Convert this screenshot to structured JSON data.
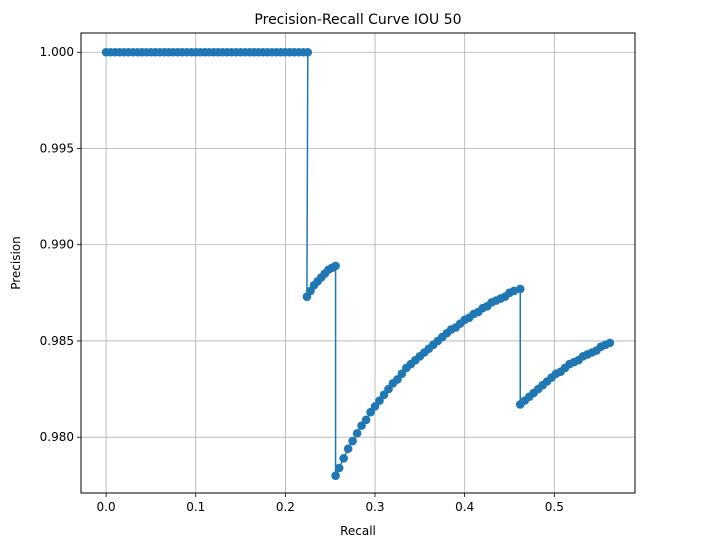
{
  "chart_data": {
    "type": "line",
    "title": "Precision-Recall Curve IOU 50",
    "xlabel": "Recall",
    "ylabel": "Precision",
    "xlim": [
      -0.028,
      0.59
    ],
    "ylim": [
      0.9771,
      1.001
    ],
    "xticks": [
      0.0,
      0.1,
      0.2,
      0.3,
      0.4,
      0.5
    ],
    "xtick_labels": [
      "0.0",
      "0.1",
      "0.2",
      "0.3",
      "0.4",
      "0.5"
    ],
    "yticks": [
      0.98,
      0.985,
      0.99,
      0.995,
      1.0
    ],
    "ytick_labels": [
      "0.980",
      "0.985",
      "0.990",
      "0.995",
      "1.000"
    ],
    "grid": true,
    "marker": "circle",
    "color": "#1f77b4",
    "series": [
      {
        "x": [
          0.0,
          0.005,
          0.01,
          0.015,
          0.02,
          0.025,
          0.03,
          0.035,
          0.04,
          0.045,
          0.05,
          0.055,
          0.06,
          0.065,
          0.07,
          0.075,
          0.08,
          0.085,
          0.09,
          0.095,
          0.1,
          0.105,
          0.11,
          0.115,
          0.12,
          0.125,
          0.13,
          0.135,
          0.14,
          0.145,
          0.15,
          0.155,
          0.16,
          0.165,
          0.17,
          0.175,
          0.18,
          0.185,
          0.19,
          0.195,
          0.2,
          0.205,
          0.21,
          0.215,
          0.22,
          0.225,
          0.224,
          0.228,
          0.232,
          0.236,
          0.24,
          0.244,
          0.248,
          0.252,
          0.256,
          0.256,
          0.26,
          0.265,
          0.27,
          0.275,
          0.28,
          0.285,
          0.29,
          0.295,
          0.3,
          0.305,
          0.31,
          0.315,
          0.32,
          0.325,
          0.33,
          0.335,
          0.34,
          0.345,
          0.35,
          0.355,
          0.36,
          0.365,
          0.37,
          0.375,
          0.38,
          0.385,
          0.39,
          0.395,
          0.4,
          0.405,
          0.41,
          0.415,
          0.42,
          0.425,
          0.43,
          0.435,
          0.44,
          0.445,
          0.45,
          0.455,
          0.462,
          0.462,
          0.467,
          0.472,
          0.477,
          0.482,
          0.487,
          0.492,
          0.497,
          0.502,
          0.507,
          0.512,
          0.517,
          0.522,
          0.527,
          0.532,
          0.537,
          0.542,
          0.547,
          0.552,
          0.557,
          0.562
        ],
        "y": [
          1.0,
          1.0,
          1.0,
          1.0,
          1.0,
          1.0,
          1.0,
          1.0,
          1.0,
          1.0,
          1.0,
          1.0,
          1.0,
          1.0,
          1.0,
          1.0,
          1.0,
          1.0,
          1.0,
          1.0,
          1.0,
          1.0,
          1.0,
          1.0,
          1.0,
          1.0,
          1.0,
          1.0,
          1.0,
          1.0,
          1.0,
          1.0,
          1.0,
          1.0,
          1.0,
          1.0,
          1.0,
          1.0,
          1.0,
          1.0,
          1.0,
          1.0,
          1.0,
          1.0,
          1.0,
          1.0,
          0.9873,
          0.9876,
          0.9879,
          0.9881,
          0.9883,
          0.9885,
          0.9887,
          0.9888,
          0.9889,
          0.978,
          0.9784,
          0.9789,
          0.9794,
          0.9798,
          0.9802,
          0.9806,
          0.9809,
          0.9813,
          0.9816,
          0.9819,
          0.9822,
          0.9825,
          0.9828,
          0.983,
          0.9833,
          0.9836,
          0.9838,
          0.984,
          0.9842,
          0.9844,
          0.9846,
          0.9848,
          0.985,
          0.9852,
          0.9854,
          0.9856,
          0.9857,
          0.9859,
          0.9861,
          0.9862,
          0.9864,
          0.9865,
          0.9867,
          0.9868,
          0.987,
          0.9871,
          0.9872,
          0.9873,
          0.9875,
          0.9876,
          0.9877,
          0.9817,
          0.9819,
          0.9821,
          0.9823,
          0.9825,
          0.9827,
          0.9829,
          0.9831,
          0.9833,
          0.9834,
          0.9836,
          0.9838,
          0.9839,
          0.984,
          0.9842,
          0.9843,
          0.9844,
          0.9845,
          0.9847,
          0.9848,
          0.9849
        ]
      }
    ]
  }
}
